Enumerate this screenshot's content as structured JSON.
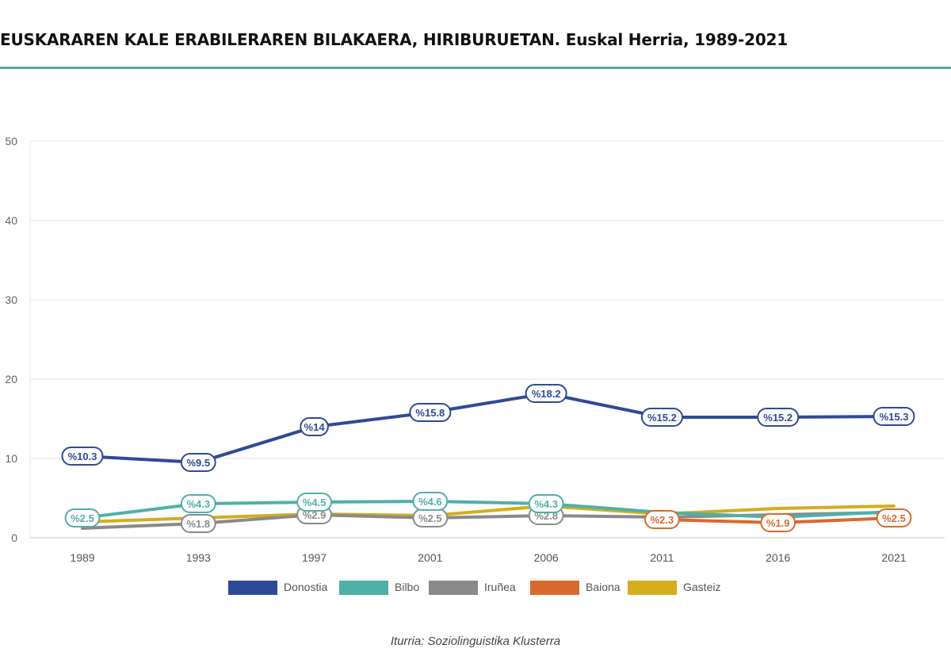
{
  "title": "EUSKARAREN KALE ERABILERAREN BILAKAERA, HIRIBURUETAN. Euskal Herria, 1989-2021",
  "source": "Iturria: Soziolinguistika Klusterra",
  "chart_data": {
    "type": "line",
    "categories": [
      "1989",
      "1993",
      "1997",
      "2001",
      "2006",
      "2011",
      "2016",
      "2021"
    ],
    "ylim": [
      0,
      50
    ],
    "yticks": [
      0,
      10,
      20,
      30,
      40,
      50
    ],
    "grid": true,
    "legend_position": "bottom",
    "label_prefix": "%",
    "series": [
      {
        "name": "Donostia",
        "color": "#2f4a96",
        "values": [
          10.3,
          9.5,
          14,
          15.8,
          18.2,
          15.2,
          15.2,
          15.3
        ],
        "labels": [
          "%10.3",
          "%9.5",
          "%14",
          "%15.8",
          "%18.2",
          "%15.2",
          "%15.2",
          "%15.3"
        ]
      },
      {
        "name": "Bilbo",
        "color": "#4fb0a8",
        "values": [
          2.5,
          4.3,
          4.5,
          4.6,
          4.3,
          3.2,
          2.6,
          3.3
        ],
        "labels": [
          "%2.5",
          "%4.3",
          "%4.5",
          "%4.6",
          "%4.3",
          "",
          "",
          ""
        ]
      },
      {
        "name": "Iruñea",
        "color": "#8a8a8a",
        "values": [
          1.2,
          1.8,
          2.9,
          2.5,
          2.8,
          2.6,
          2.9,
          3.2
        ],
        "labels": [
          "",
          "%1.8",
          "%2.9",
          "%2.5",
          "%2.8",
          "",
          "",
          ""
        ]
      },
      {
        "name": "Baiona",
        "color": "#d96a2b",
        "values": [
          null,
          null,
          null,
          null,
          null,
          2.3,
          1.9,
          2.5
        ],
        "labels": [
          "",
          "",
          "",
          "",
          "",
          "%2.3",
          "%1.9",
          "%2.5"
        ]
      },
      {
        "name": "Gasteiz",
        "color": "#d4ad1f",
        "values": [
          2.0,
          2.5,
          3.0,
          2.8,
          4.0,
          3.0,
          3.7,
          4.0
        ],
        "labels": [
          "",
          "",
          "",
          "",
          "",
          "",
          "",
          ""
        ]
      }
    ]
  }
}
